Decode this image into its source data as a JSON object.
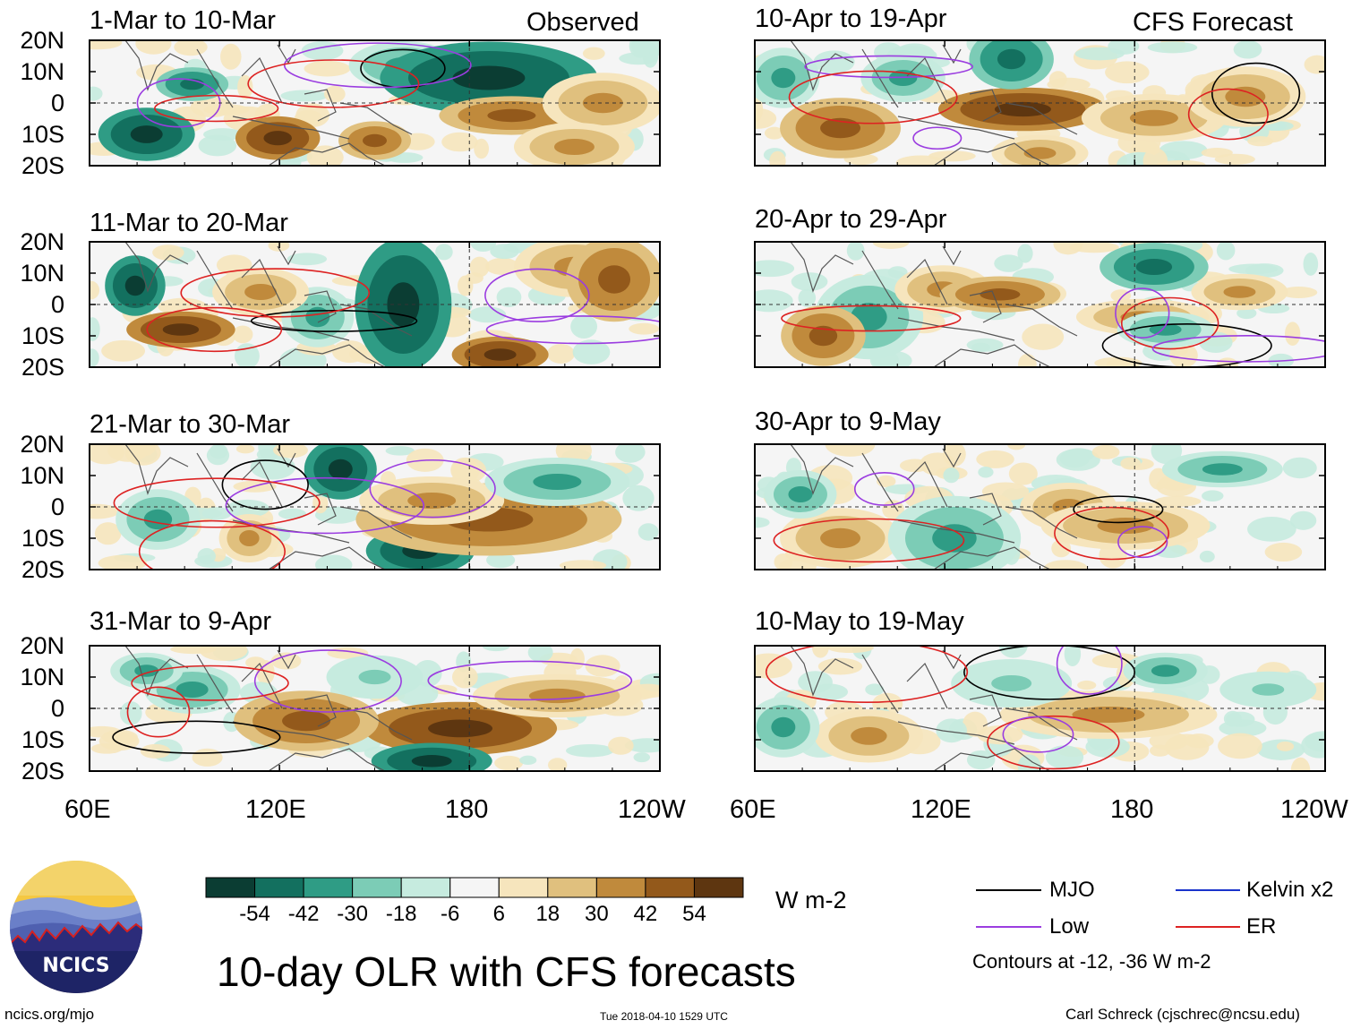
{
  "title": "10-day OLR with CFS forecasts",
  "units": "W m-2",
  "left_label": "Observed",
  "right_label": "CFS Forecast",
  "lat_ticks": [
    "20N",
    "10N",
    "0",
    "10S",
    "20S"
  ],
  "lon_ticks": [
    "60E",
    "120E",
    "180",
    "120W"
  ],
  "panels_left": [
    {
      "period": "1-Mar to 10-Mar"
    },
    {
      "period": "11-Mar to 20-Mar"
    },
    {
      "period": "21-Mar to 30-Mar"
    },
    {
      "period": "31-Mar to 9-Apr"
    }
  ],
  "panels_right": [
    {
      "period": "10-Apr to 19-Apr"
    },
    {
      "period": "20-Apr to 29-Apr"
    },
    {
      "period": "30-Apr to 9-May"
    },
    {
      "period": "10-May to 19-May"
    }
  ],
  "colorbar": {
    "labels": [
      "-54",
      "-42",
      "-30",
      "-18",
      "-6",
      "6",
      "18",
      "30",
      "42",
      "54"
    ],
    "colors": [
      "#0b3d33",
      "#13705f",
      "#2f9c85",
      "#7cccb6",
      "#c6ebdf",
      "#f5f5f5",
      "#f6e5bd",
      "#e0c07e",
      "#c08a3c",
      "#93591b",
      "#5e3610"
    ]
  },
  "legend": {
    "items": [
      {
        "label": "MJO",
        "color": "#000000"
      },
      {
        "label": "Kelvin x2",
        "color": "#1a33cc"
      },
      {
        "label": "Low",
        "color": "#9b3de0"
      },
      {
        "label": "ER",
        "color": "#dd2222"
      }
    ],
    "note": "Contours at -12, -36 W m-2"
  },
  "logo": {
    "text": "NCICS"
  },
  "footer": {
    "url": "ncics.org/mjo",
    "timestamp": "Tue 2018-04-10 1529 UTC",
    "credit": "Carl Schreck (cjschrec@ncsu.edu)"
  }
}
